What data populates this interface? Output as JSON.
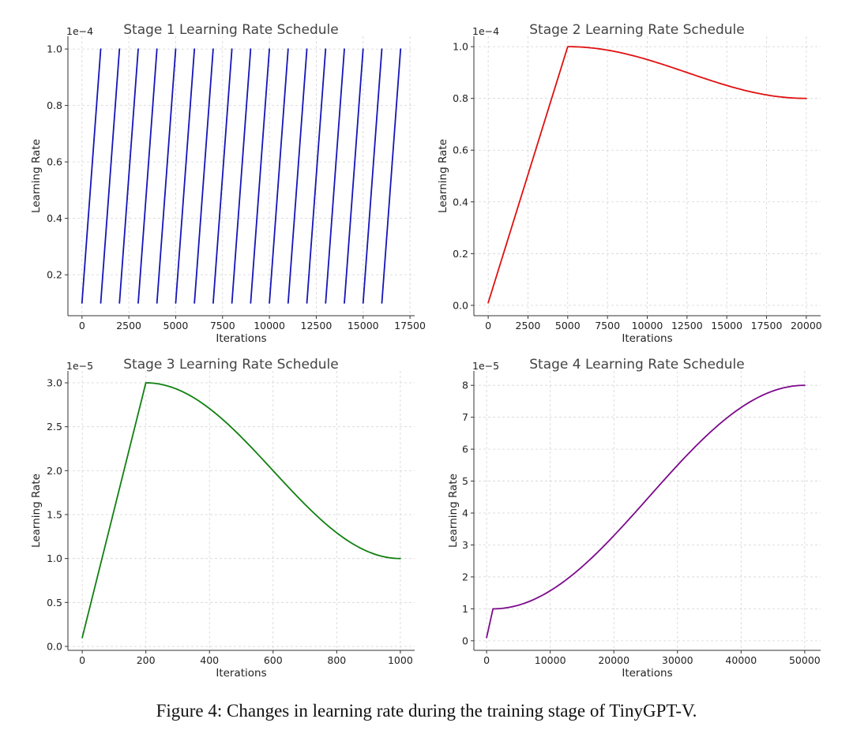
{
  "figure": {
    "caption": "Figure 4: Changes in learning rate during the training stage of TinyGPT-V."
  },
  "chart_data": [
    {
      "type": "line",
      "title": "Stage 1 Learning Rate Schedule",
      "xlabel": "Iterations",
      "ylabel": "Learning Rate",
      "y_multiplier": "1e−4",
      "xlim": [
        -750,
        17750
      ],
      "ylim": [
        0.055,
        1.045
      ],
      "xticks": [
        0,
        2500,
        5000,
        7500,
        10000,
        12500,
        15000,
        17500
      ],
      "yticks": [
        0.2,
        0.4,
        0.6,
        0.8,
        1.0
      ],
      "ytick_decimals": 1,
      "grid": true,
      "color": "#1515b8",
      "series": [
        {
          "kind": "sawtooth",
          "start": 0,
          "period": 1000,
          "count": 17,
          "low": 0.1,
          "high": 1.0
        }
      ]
    },
    {
      "type": "line",
      "title": "Stage 2 Learning Rate Schedule",
      "xlabel": "Iterations",
      "ylabel": "Learning Rate",
      "y_multiplier": "1e−4",
      "xlim": [
        -900,
        20900
      ],
      "ylim": [
        -0.04,
        1.04
      ],
      "xticks": [
        0,
        2500,
        5000,
        7500,
        10000,
        12500,
        15000,
        17500,
        20000
      ],
      "yticks": [
        0.0,
        0.2,
        0.4,
        0.6,
        0.8,
        1.0
      ],
      "ytick_decimals": 1,
      "grid": true,
      "color": "#e01010",
      "series": [
        {
          "kind": "warmup-cosine",
          "x0": 0,
          "x_peak": 5000,
          "x_end": 20000,
          "y0": 0.01,
          "y_peak": 1.0,
          "y_end": 0.8
        }
      ]
    },
    {
      "type": "line",
      "title": "Stage 3 Learning Rate Schedule",
      "xlabel": "Iterations",
      "ylabel": "Learning Rate",
      "y_multiplier": "1e−5",
      "xlim": [
        -45,
        1045
      ],
      "ylim": [
        -0.045,
        3.135
      ],
      "xticks": [
        0,
        200,
        400,
        600,
        800,
        1000
      ],
      "yticks": [
        0.0,
        0.5,
        1.0,
        1.5,
        2.0,
        2.5,
        3.0
      ],
      "ytick_decimals": 1,
      "grid": true,
      "color": "#108010",
      "series": [
        {
          "kind": "warmup-cosine",
          "x0": 0,
          "x_peak": 200,
          "x_end": 1000,
          "y0": 0.1,
          "y_peak": 3.0,
          "y_end": 1.0
        }
      ]
    },
    {
      "type": "line",
      "title": "Stage 4 Learning Rate Schedule",
      "xlabel": "Iterations",
      "ylabel": "Learning Rate",
      "y_multiplier": "1e−5",
      "xlim": [
        -2000,
        52500
      ],
      "ylim": [
        -0.3,
        8.45
      ],
      "xticks": [
        0,
        10000,
        20000,
        30000,
        40000,
        50000
      ],
      "yticks": [
        0,
        1,
        2,
        3,
        4,
        5,
        6,
        7,
        8
      ],
      "ytick_decimals": 0,
      "grid": true,
      "color": "#7d0a8c",
      "series": [
        {
          "kind": "warmup-cosine",
          "x0": 0,
          "x_peak": 1000,
          "x_end": 50000,
          "y0": 0.1,
          "y_peak": 1.0,
          "y_end": 8.0
        }
      ]
    }
  ]
}
